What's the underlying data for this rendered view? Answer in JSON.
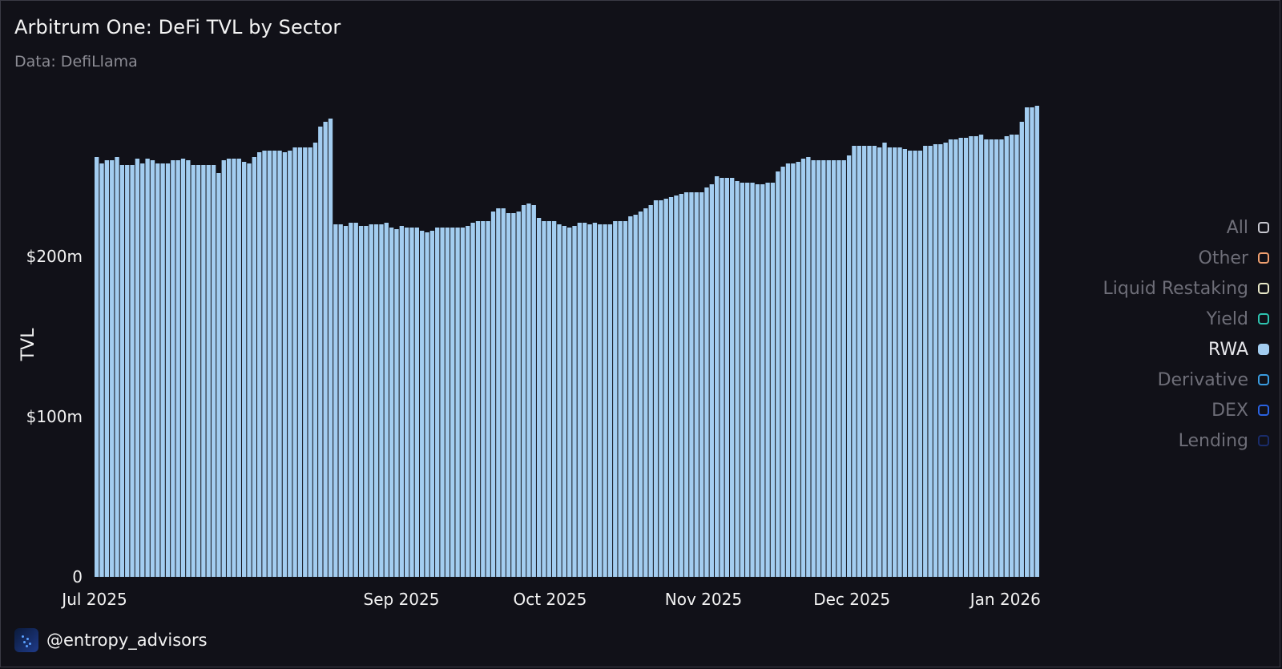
{
  "header": {
    "title": "Arbitrum One: DeFi TVL by Sector",
    "subtitle": "Data: DefiLlama"
  },
  "legend": {
    "items": [
      {
        "label": "All",
        "color": "#c8c8d0",
        "active": false
      },
      {
        "label": "Other",
        "color": "#f0a070",
        "active": false
      },
      {
        "label": "Liquid Restaking",
        "color": "#e8e8c8",
        "active": false
      },
      {
        "label": "Yield",
        "color": "#2ec4b0",
        "active": false
      },
      {
        "label": "RWA",
        "color": "#a3cdf0",
        "active": true
      },
      {
        "label": "Derivative",
        "color": "#3a9ce0",
        "active": false
      },
      {
        "label": "DEX",
        "color": "#2a62e0",
        "active": false
      },
      {
        "label": "Lending",
        "color": "#1a2c6a",
        "active": false
      }
    ]
  },
  "footer": {
    "handle": "@entropy_advisors",
    "icon": "entropy-logo-icon"
  },
  "chart_data": {
    "type": "bar",
    "title": "",
    "ylabel": "TVL",
    "xlabel": "",
    "ylim": [
      0,
      300
    ],
    "y_unit": "$m",
    "grid": false,
    "legend_position": "right",
    "bar_color": "#a3cdf0",
    "x_start": "2025-07-01",
    "x_end": "2026-01-08",
    "y_ticks": [
      {
        "value": 0,
        "label": "0"
      },
      {
        "value": 100,
        "label": "$100m"
      },
      {
        "value": 200,
        "label": "$200m"
      }
    ],
    "x_ticks": [
      {
        "date": "2025-07-01",
        "label": "Jul 2025"
      },
      {
        "date": "2025-09-01",
        "label": "Sep 2025"
      },
      {
        "date": "2025-10-01",
        "label": "Oct 2025"
      },
      {
        "date": "2025-11-01",
        "label": "Nov 2025"
      },
      {
        "date": "2025-12-01",
        "label": "Dec 2025"
      },
      {
        "date": "2026-01-01",
        "label": "Jan 2026"
      }
    ],
    "series": [
      {
        "name": "RWA",
        "values": [
          262,
          258,
          260,
          260,
          262,
          257,
          257,
          257,
          261,
          258,
          261,
          260,
          258,
          258,
          258,
          260,
          260,
          261,
          260,
          257,
          257,
          257,
          257,
          257,
          252,
          260,
          261,
          261,
          261,
          259,
          258,
          262,
          265,
          266,
          266,
          266,
          266,
          265,
          266,
          268,
          268,
          268,
          268,
          271,
          281,
          284,
          286,
          220,
          220,
          219,
          221,
          221,
          219,
          219,
          220,
          220,
          220,
          221,
          218,
          217,
          219,
          218,
          218,
          218,
          216,
          215,
          216,
          218,
          218,
          218,
          218,
          218,
          218,
          219,
          221,
          222,
          222,
          222,
          228,
          230,
          230,
          227,
          227,
          228,
          232,
          233,
          232,
          224,
          222,
          222,
          222,
          220,
          219,
          218,
          219,
          221,
          221,
          220,
          221,
          220,
          220,
          220,
          222,
          222,
          222,
          225,
          226,
          228,
          230,
          232,
          235,
          235,
          236,
          237,
          238,
          239,
          240,
          240,
          240,
          240,
          243,
          245,
          250,
          249,
          249,
          249,
          247,
          246,
          246,
          246,
          245,
          245,
          246,
          246,
          253,
          256,
          258,
          258,
          259,
          261,
          262,
          260,
          260,
          260,
          260,
          260,
          260,
          260,
          263,
          269,
          269,
          269,
          269,
          269,
          268,
          271,
          268,
          268,
          268,
          267,
          266,
          266,
          266,
          269,
          269,
          270,
          270,
          271,
          273,
          273,
          274,
          274,
          275,
          275,
          276,
          273,
          273,
          273,
          273,
          275,
          276,
          276,
          284,
          293,
          293,
          294
        ]
      }
    ]
  }
}
